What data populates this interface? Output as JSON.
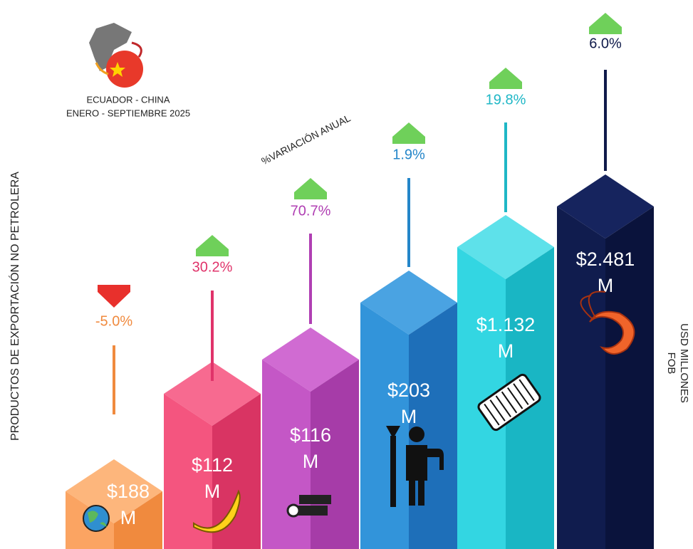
{
  "header": {
    "line1": "ECUADOR - CHINA",
    "line2": "ENERO - SEPTIEMBRE 2025"
  },
  "left_label": "PRODUCTOS DE EXPORTACIÓN NO PETROLERA",
  "right_label": [
    "USD MILLONES",
    "FOB"
  ],
  "variation_label": "%VARIACIÓN ANUAL",
  "items": [
    {
      "value": "$188",
      "unit": "M",
      "change": "-5.0%"
    },
    {
      "value": "$112",
      "unit": "M",
      "change": "30.2%"
    },
    {
      "value": "$116",
      "unit": "M",
      "change": "70.7%"
    },
    {
      "value": "$203",
      "unit": "M",
      "change": "1.9%"
    },
    {
      "value": "$1.132",
      "unit": "M",
      "change": "19.8%"
    },
    {
      "value": "$2.481",
      "unit": "M",
      "change": "6.0%"
    }
  ]
}
